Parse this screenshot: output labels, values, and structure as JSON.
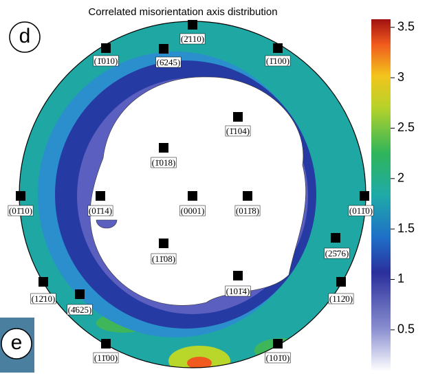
{
  "chart_data": {
    "type": "contour",
    "title": "Correlated misorientation axis distribution",
    "panel_label": "d",
    "next_panel_label": "e",
    "poles": [
      "(2̄110)",
      "(1̄010)",
      "(6̄245)",
      "(1̄100)",
      "(1̄104)",
      "(1̄018)",
      "(01̄10)",
      "(01̄14)",
      "(0001)",
      "(011̄8)",
      "(011̄0)",
      "(25̄76)",
      "(11̄08)",
      "(101̄4)",
      "(12̄10)",
      "(112̄0)",
      "(4̄625)",
      "(11̄00)",
      "(101̄0)"
    ],
    "colorbar_ylim": [
      0.09,
      3.58
    ],
    "colorbar_ticks": [
      0.5,
      1,
      1.5,
      2,
      2.5,
      3,
      3.5
    ]
  }
}
